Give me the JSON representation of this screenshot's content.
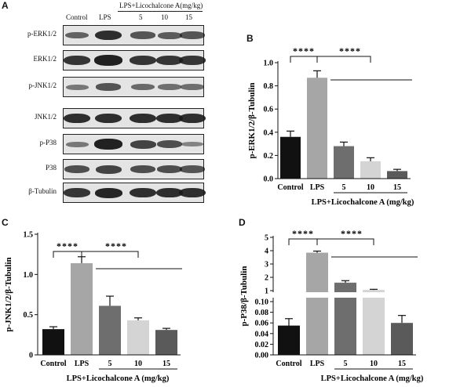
{
  "panels": {
    "a": "A",
    "b": "B",
    "c": "C",
    "d": "D"
  },
  "blot": {
    "group_label": "LPS+Licochalcone A(mg/kg)",
    "lane_labels": [
      "Control",
      "LPS",
      "5",
      "10",
      "15"
    ],
    "rows": [
      {
        "label": "p-ERK1/2",
        "intensity": [
          0.45,
          0.85,
          0.55,
          0.5,
          0.55
        ]
      },
      {
        "label": "ERK1/2",
        "intensity": [
          0.8,
          0.95,
          0.8,
          0.8,
          0.8
        ]
      },
      {
        "label": "p-JNK1/2",
        "intensity": [
          0.3,
          0.55,
          0.4,
          0.35,
          0.35
        ]
      },
      {
        "label": "JNK1/2",
        "intensity": [
          0.85,
          0.85,
          0.85,
          0.85,
          0.85
        ]
      },
      {
        "label": "p-P38",
        "intensity": [
          0.3,
          0.95,
          0.7,
          0.6,
          0.2
        ]
      },
      {
        "label": "P38",
        "intensity": [
          0.6,
          0.7,
          0.6,
          0.6,
          0.55
        ]
      },
      {
        "label": "β-Tubulin",
        "intensity": [
          0.8,
          0.9,
          0.85,
          0.85,
          0.85
        ]
      }
    ]
  },
  "colors": {
    "bars": [
      "#111111",
      "#a6a6a6",
      "#6e6e6e",
      "#d4d4d4",
      "#5a5a5a"
    ]
  },
  "chart_data": [
    {
      "id": "B",
      "type": "bar",
      "categories": [
        "Control",
        "LPS",
        "5",
        "10",
        "15"
      ],
      "values": [
        0.36,
        0.87,
        0.28,
        0.15,
        0.065
      ],
      "errors": [
        0.05,
        0.06,
        0.035,
        0.03,
        0.015
      ],
      "ylabel": "p-ERK1/2/β-Tubulin",
      "xlabel": "LPS+Licochalcone A (mg/kg)",
      "ylim": [
        0,
        1.0
      ],
      "yticks": [
        "0.0",
        "0.2",
        "0.4",
        "0.6",
        "0.8",
        "1.0"
      ],
      "significance": [
        "****",
        "****"
      ]
    },
    {
      "id": "C",
      "type": "bar",
      "categories": [
        "Control",
        "LPS",
        "5",
        "10",
        "15"
      ],
      "values": [
        0.32,
        1.14,
        0.61,
        0.43,
        0.31
      ],
      "errors": [
        0.03,
        0.08,
        0.12,
        0.03,
        0.02
      ],
      "ylabel": "p-JNK1/2/β-Tubulin",
      "xlabel": "LPS+Licochalcone A (mg/kg)",
      "ylim": [
        0,
        1.5
      ],
      "yticks": [
        "0",
        "0.5",
        "1.0",
        "1.5"
      ],
      "significance": [
        "****",
        "****"
      ]
    },
    {
      "id": "D",
      "type": "bar",
      "categories": [
        "Control",
        "LPS",
        "5",
        "10",
        "15"
      ],
      "values": [
        0.055,
        3.85,
        1.6,
        1.05,
        0.06
      ],
      "errors": [
        0.013,
        0.12,
        0.15,
        0.05,
        0.014
      ],
      "ylabel": "p-P38/β-Tubulin",
      "xlabel": "LPS+Licochalcone A (mg/kg)",
      "ylim": [
        0,
        5
      ],
      "axis_break": [
        0.1,
        1
      ],
      "yticks_lower": [
        "0.00",
        "0.02",
        "0.04",
        "0.06",
        "0.08",
        "0.10"
      ],
      "yticks_upper": [
        "1",
        "2",
        "3",
        "4",
        "5"
      ],
      "significance": [
        "****",
        "****"
      ]
    }
  ]
}
